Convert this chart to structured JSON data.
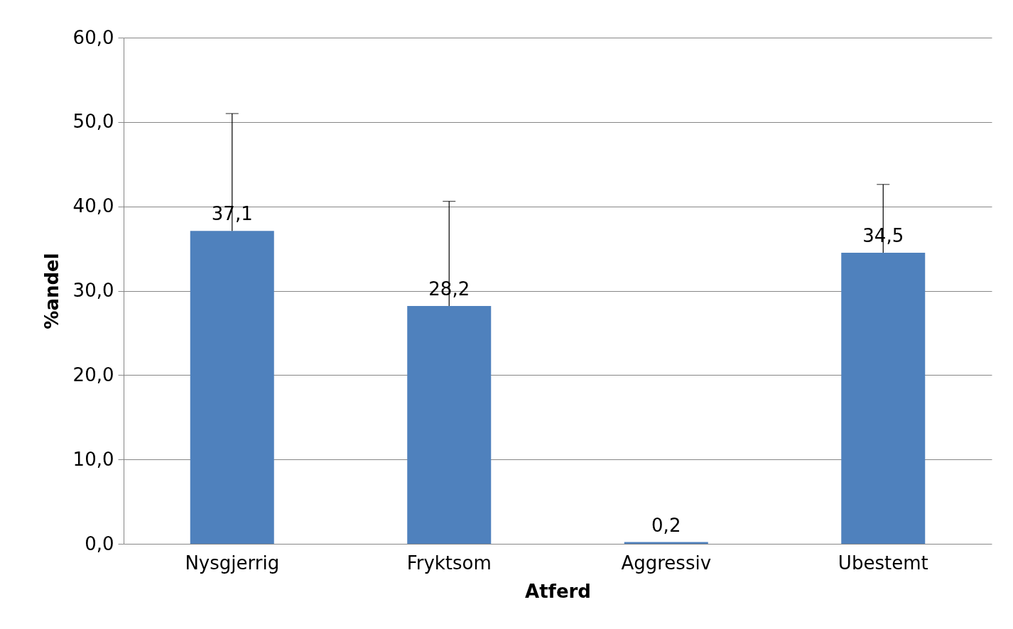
{
  "chart_data": {
    "type": "bar",
    "xlabel": "Atferd",
    "ylabel": "%andel",
    "categories": [
      "Nysgjerrig",
      "Fryktsom",
      "Aggressiv",
      "Ubestemt"
    ],
    "values": [
      37.1,
      28.2,
      0.2,
      34.5
    ],
    "value_labels": [
      "37,1",
      "28,2",
      "0,2",
      "34,5"
    ],
    "errors": [
      [
        37.1,
        51.0
      ],
      [
        28.2,
        40.6
      ],
      null,
      [
        34.5,
        42.6
      ]
    ],
    "color": "#4f81bd",
    "ylim": [
      0,
      60
    ],
    "yticks": [
      {
        "value": 0,
        "label": "0,0"
      },
      {
        "value": 10,
        "label": "10,0"
      },
      {
        "value": 20,
        "label": "20,0"
      },
      {
        "value": 30,
        "label": "30,0"
      },
      {
        "value": 40,
        "label": "40,0"
      },
      {
        "value": 50,
        "label": "50,0"
      },
      {
        "value": 60,
        "label": "60,0"
      }
    ],
    "grid": "y"
  }
}
